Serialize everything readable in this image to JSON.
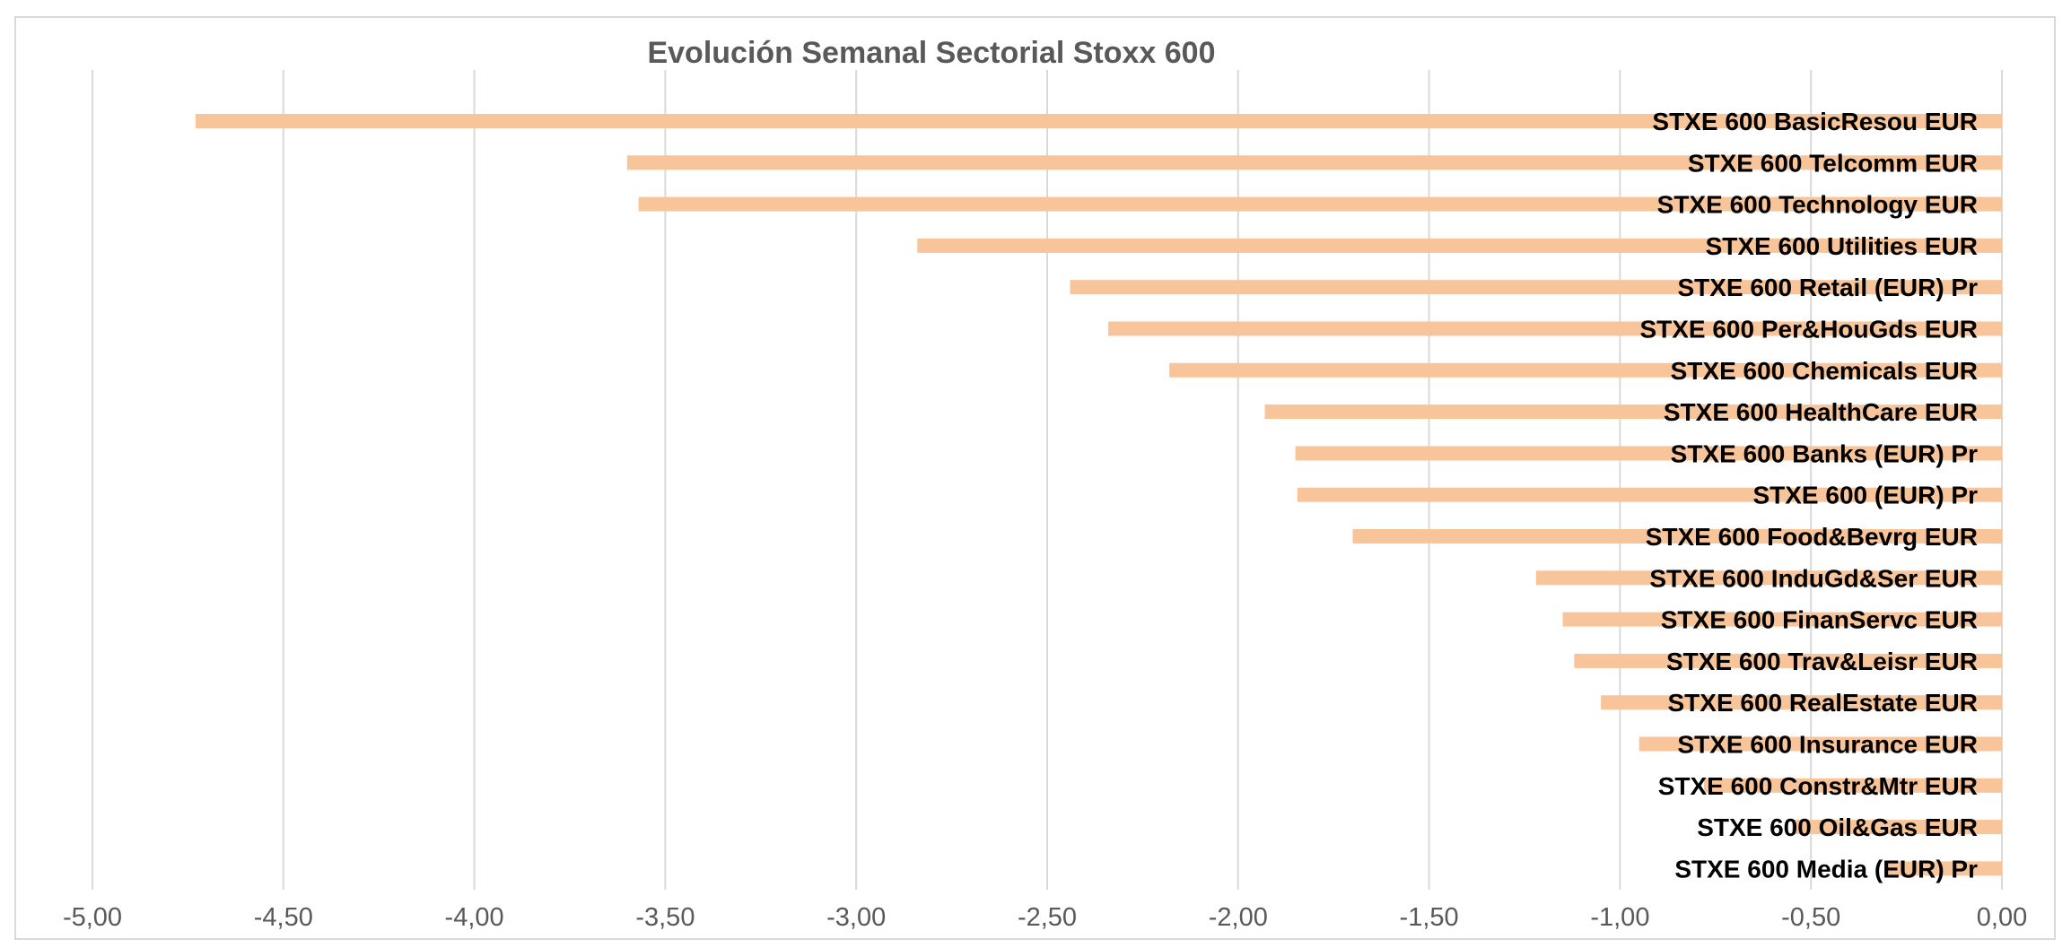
{
  "colors": {
    "bar": "#f8c49a",
    "gridline": "#d9d9d9",
    "title": "#595959",
    "label": "#000000",
    "tick": "#595959"
  },
  "chart_data": {
    "type": "bar",
    "orientation": "horizontal",
    "title": "Evolución Semanal Sectorial Stoxx 600",
    "xlabel": "",
    "ylabel": "",
    "xlim": [
      -5.0,
      0.0
    ],
    "grid": true,
    "legend": "none",
    "ticks": [
      "-5,00",
      "-4,50",
      "-4,00",
      "-3,50",
      "-3,00",
      "-2,50",
      "-2,00",
      "-1,50",
      "-1,00",
      "-0,50",
      "0,00"
    ],
    "tick_values": [
      -5.0,
      -4.5,
      -4.0,
      -3.5,
      -3.0,
      -2.5,
      -2.0,
      -1.5,
      -1.0,
      -0.5,
      0.0
    ],
    "categories": [
      "STXE 600 BasicResou EUR",
      "STXE 600 Telcomm EUR",
      "STXE 600 Technology EUR",
      "STXE 600 Utilities EUR",
      "STXE 600 Retail (EUR) Pr",
      "STXE 600 Per&HouGds EUR",
      "STXE 600 Chemicals EUR",
      "STXE 600 HealthCare EUR",
      "STXE 600 Banks (EUR) Pr",
      "STXE 600 (EUR) Pr",
      "STXE 600 Food&Bevrg EUR",
      "STXE 600 InduGd&Ser EUR",
      "STXE 600 FinanServc EUR",
      "STXE 600 Trav&Leisr EUR",
      "STXE 600 RealEstate EUR",
      "STXE 600 Insurance EUR",
      "STXE 600 Constr&Mtr EUR",
      "STXE 600 Oil&Gas EUR",
      "STXE 600 Media (EUR) Pr"
    ],
    "values": [
      -4.73,
      -3.6,
      -3.57,
      -2.84,
      -2.44,
      -2.34,
      -2.18,
      -1.93,
      -1.85,
      -1.845,
      -1.7,
      -1.22,
      -1.15,
      -1.12,
      -1.05,
      -0.95,
      -0.78,
      -0.55,
      -0.3
    ]
  }
}
